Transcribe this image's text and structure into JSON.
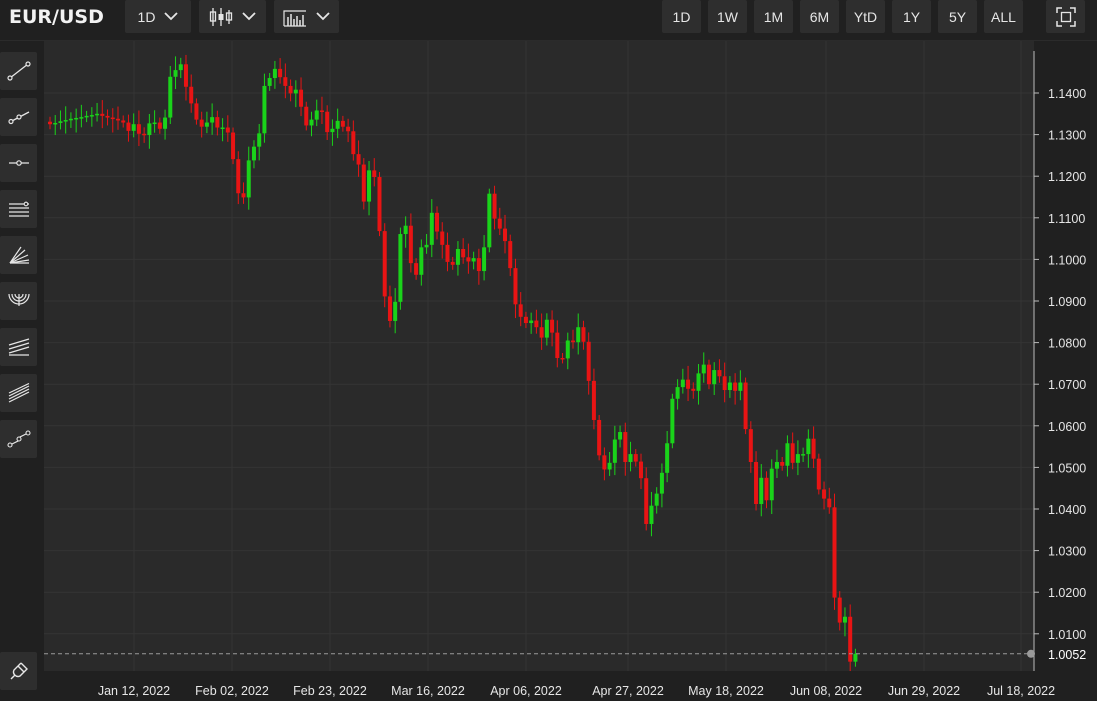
{
  "header": {
    "symbol": "EUR/USD",
    "interval": "1D",
    "chart_type_icon": "candlestick-icon",
    "indicator_icon": "indicators-icon",
    "ranges": [
      "1D",
      "1W",
      "1M",
      "6M",
      "YtD",
      "1Y",
      "5Y",
      "ALL"
    ],
    "fullscreen_icon": "fullscreen-icon"
  },
  "tools": [
    "trend-line-icon",
    "ray-icon",
    "horizontal-line-icon",
    "parallel-channel-icon",
    "fan-icon",
    "arc-icon",
    "pitchfork-icon",
    "fib-channel-icon",
    "path-icon"
  ],
  "magnet_icon": "magnet-icon",
  "colors": {
    "up": "#1ad31a",
    "down": "#e81414",
    "background": "#2a2a2a",
    "grid": "#343434"
  },
  "chart_data": {
    "type": "candlestick",
    "last_price": "1.0052",
    "y_ticks": [
      "1.1400",
      "1.1300",
      "1.1200",
      "1.1100",
      "1.1000",
      "1.0900",
      "1.0800",
      "1.0700",
      "1.0600",
      "1.0500",
      "1.0400",
      "1.0300",
      "1.0200",
      "1.0100"
    ],
    "x_ticks": [
      "Jan 12, 2022",
      "Feb 02, 2022",
      "Feb 23, 2022",
      "Mar 16, 2022",
      "Apr 06, 2022",
      "Apr 27, 2022",
      "May 18, 2022",
      "Jun 08, 2022",
      "Jun 29, 2022",
      "Jul 18, 2022"
    ],
    "ylim": [
      1.0,
      1.1505
    ],
    "closes": [
      1.1325,
      1.1328,
      1.1332,
      1.1335,
      1.1338,
      1.134,
      1.1342,
      1.1345,
      1.1347,
      1.135,
      1.1345,
      1.1341,
      1.1338,
      1.1334,
      1.1329,
      1.1309,
      1.1325,
      1.1302,
      1.1299,
      1.1327,
      1.1329,
      1.1314,
      1.1341,
      1.1439,
      1.1455,
      1.1469,
      1.1415,
      1.1375,
      1.1336,
      1.1319,
      1.1329,
      1.1342,
      1.1317,
      1.1317,
      1.1305,
      1.1241,
      1.1159,
      1.1149,
      1.1238,
      1.1271,
      1.1303,
      1.1417,
      1.1436,
      1.1458,
      1.1438,
      1.1417,
      1.1399,
      1.1408,
      1.1367,
      1.1322,
      1.1336,
      1.1358,
      1.1355,
      1.1306,
      1.1314,
      1.1333,
      1.1319,
      1.1308,
      1.1253,
      1.1228,
      1.1139,
      1.1214,
      1.1198,
      1.1068,
      1.0911,
      1.0852,
      1.0898,
      1.1061,
      1.1081,
      1.0991,
      1.0963,
      1.1029,
      1.1035,
      1.1112,
      1.1067,
      1.1035,
      1.0994,
      1.0987,
      1.1025,
      1.1005,
      1.0995,
      1.1003,
      1.0972,
      1.1029,
      1.1158,
      1.1098,
      1.1074,
      1.1044,
      1.0979,
      1.0892,
      1.0862,
      1.0847,
      1.0853,
      1.0837,
      1.0812,
      1.0855,
      1.0824,
      1.0763,
      1.0762,
      1.0805,
      1.0801,
      1.0837,
      1.0802,
      1.0708,
      1.0614,
      1.0529,
      1.0495,
      1.0511,
      1.0567,
      1.0585,
      1.0513,
      1.0532,
      1.0514,
      1.0474,
      1.0364,
      1.0408,
      1.0437,
      1.0487,
      1.0558,
      1.0665,
      1.0693,
      1.0711,
      1.0689,
      1.0684,
      1.0726,
      1.0747,
      1.07,
      1.0734,
      1.0719,
      1.0686,
      1.0704,
      1.0684,
      1.0704,
      1.0592,
      1.0513,
      1.0412,
      1.0475,
      1.0421,
      1.0497,
      1.0513,
      1.0504,
      1.0558,
      1.0511,
      1.0532,
      1.0532,
      1.0569,
      1.0521,
      1.0447,
      1.0425,
      1.0404,
      1.0187,
      1.0127,
      1.0141,
      1.0033,
      1.0052
    ],
    "last_candle_type": "up"
  }
}
